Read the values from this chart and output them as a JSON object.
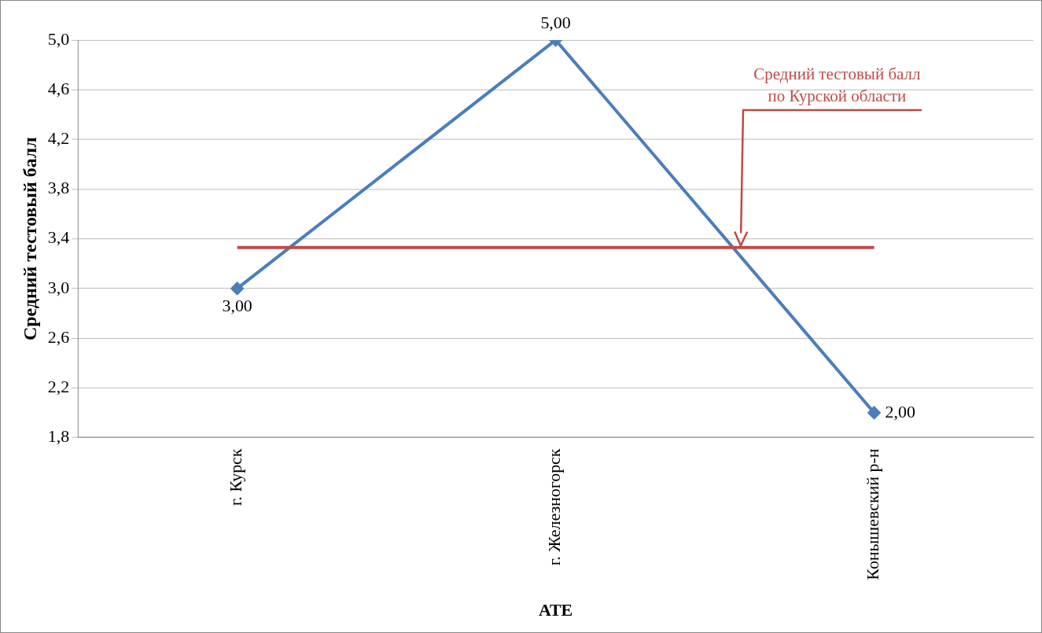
{
  "chart_data": {
    "type": "line",
    "xlabel": "АТЕ",
    "ylabel": "Средний тестовый балл",
    "categories": [
      "г. Курск",
      "г. Железногорск",
      "Конышевский р-н"
    ],
    "series": [
      {
        "color": "#4a7ebb",
        "values": [
          3.0,
          5.0,
          2.0
        ],
        "value_labels": [
          "3,00",
          "5,00",
          "2,00"
        ]
      }
    ],
    "ylim": [
      1.8,
      5.0
    ],
    "yticks": [
      {
        "value": 1.8,
        "label": "1,8"
      },
      {
        "value": 2.2,
        "label": "2,2"
      },
      {
        "value": 2.6,
        "label": "2,6"
      },
      {
        "value": 3.0,
        "label": "3,0"
      },
      {
        "value": 3.4,
        "label": "3,4"
      },
      {
        "value": 3.8,
        "label": "3,8"
      },
      {
        "value": 4.2,
        "label": "4,2"
      },
      {
        "value": 4.6,
        "label": "4,6"
      },
      {
        "value": 5.0,
        "label": "5,0"
      }
    ],
    "ref_lines": [
      {
        "axis": "y",
        "value": 3.33,
        "label": "Средний тестовый балл по Курской области",
        "color": "#be4b48"
      }
    ],
    "grid": "y",
    "legend": false,
    "marker": "diamond",
    "line_style": "solid"
  }
}
